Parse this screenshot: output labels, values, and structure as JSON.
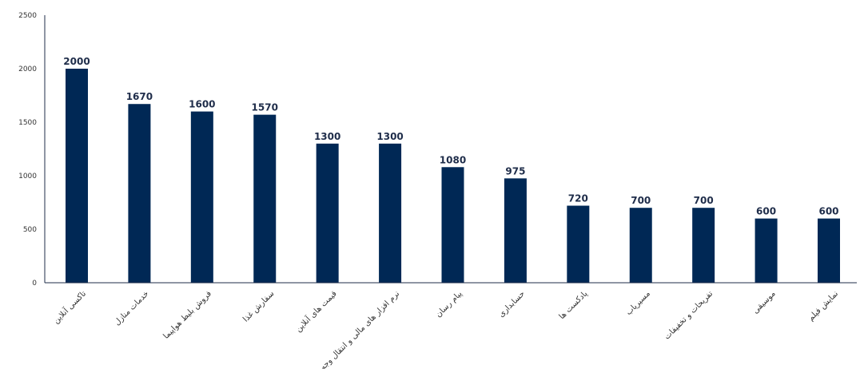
{
  "chart_data": {
    "type": "bar",
    "categories": [
      "تاکسی آنلاین",
      "خدمات منازل",
      "فروش بلیط هواپیما",
      "سفارش غذا",
      "قیمت های آنلاین",
      "نرم افزار های مالی و انتقال وجه",
      "پیام رسان",
      "حسابداری",
      "پادکست ها",
      "مسیریاب",
      "تفریحات و تخفیفات",
      "موسیقی",
      "نمایش فیلم"
    ],
    "values": [
      2000,
      1670,
      1600,
      1570,
      1300,
      1300,
      1080,
      975,
      720,
      700,
      700,
      600,
      600
    ],
    "ylim": [
      0,
      2500
    ],
    "yticks": [
      0,
      500,
      1000,
      1500,
      2000,
      2500
    ],
    "bar_color": "#002855",
    "axis_color": "#1f2d4a",
    "grid": false,
    "legend": "none",
    "data_labels": true
  }
}
